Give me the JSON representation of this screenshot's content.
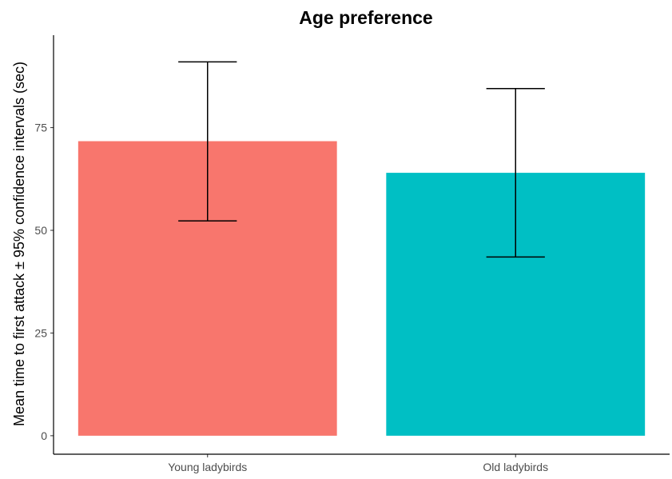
{
  "chart_data": {
    "type": "bar",
    "title": "Age preference",
    "xlabel": "",
    "ylabel": "Mean time to first attack ± 95% confidence intervals (sec)",
    "categories": [
      "Young ladybirds",
      "Old ladybirds"
    ],
    "values": [
      71.7,
      64.0
    ],
    "error_bars": [
      {
        "lower": 52.3,
        "upper": 91.0
      },
      {
        "lower": 43.5,
        "upper": 84.5
      }
    ],
    "colors": [
      "#F8766D",
      "#00BFC4"
    ],
    "yticks": [
      0,
      25,
      50,
      75
    ],
    "ylim": [
      -4.5,
      97.5
    ],
    "grid": false,
    "legend": "none"
  }
}
